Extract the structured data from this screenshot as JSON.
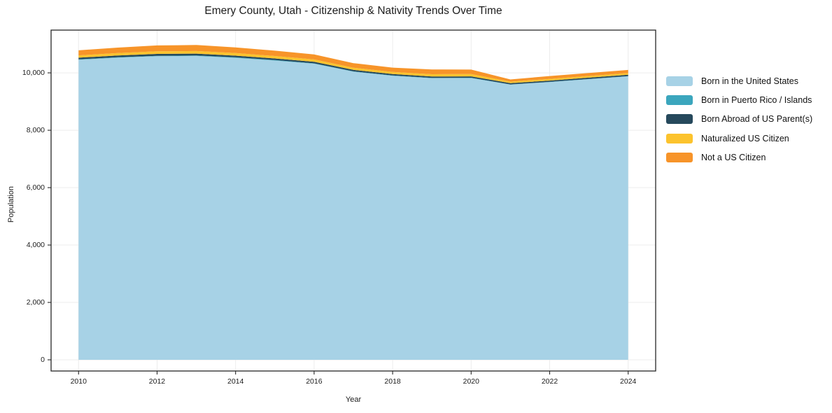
{
  "chart_data": {
    "type": "area",
    "stacked": true,
    "title": "Emery County, Utah - Citizenship & Nativity Trends Over Time",
    "xlabel": "Year",
    "ylabel": "Population",
    "x": [
      2010,
      2011,
      2012,
      2013,
      2014,
      2015,
      2016,
      2017,
      2018,
      2019,
      2020,
      2021,
      2022,
      2023,
      2024
    ],
    "series": [
      {
        "name": "Born in the United States",
        "color": "#a7d2e6",
        "values": [
          10455,
          10530,
          10580,
          10590,
          10525,
          10430,
          10320,
          10040,
          9900,
          9815,
          9820,
          9590,
          9680,
          9780,
          9880
        ]
      },
      {
        "name": "Born in Puerto Rico / Islands",
        "color": "#3ba6bd",
        "values": [
          15,
          15,
          15,
          15,
          15,
          15,
          12,
          12,
          10,
          10,
          10,
          8,
          8,
          8,
          8
        ]
      },
      {
        "name": "Born Abroad of US Parent(s)",
        "color": "#26495c",
        "values": [
          60,
          60,
          65,
          65,
          60,
          58,
          55,
          52,
          50,
          48,
          48,
          42,
          44,
          45,
          45
        ]
      },
      {
        "name": "Naturalized US Citizen",
        "color": "#fcc32d",
        "values": [
          80,
          85,
          90,
          90,
          90,
          85,
          80,
          75,
          72,
          80,
          82,
          55,
          58,
          60,
          58
        ]
      },
      {
        "name": "Not a US Citizen",
        "color": "#f79429",
        "values": [
          175,
          190,
          205,
          210,
          195,
          185,
          175,
          160,
          150,
          165,
          155,
          75,
          100,
          105,
          110
        ]
      }
    ],
    "totals": [
      10785,
      10880,
      10955,
      10970,
      10885,
      10773,
      10642,
      10339,
      10182,
      10118,
      10115,
      9770,
      9890,
      9998,
      10101
    ],
    "x_ticks": {
      "values": [
        2010,
        2012,
        2014,
        2016,
        2018,
        2020,
        2022,
        2024
      ],
      "labels": [
        "2010",
        "2012",
        "2014",
        "2016",
        "2018",
        "2020",
        "2022",
        "2024"
      ]
    },
    "y_ticks": {
      "values": [
        0,
        2000,
        4000,
        6000,
        8000,
        10000
      ],
      "labels": [
        "0",
        "2,000",
        "4,000",
        "6,000",
        "8,000",
        "10,000"
      ]
    },
    "xlim": [
      2009.3,
      2024.7
    ],
    "ylim": [
      -390,
      11490
    ],
    "grid": true,
    "legend_position": "right",
    "colors": {
      "grid": "#ececec",
      "spine": "#262626",
      "tick": "#262626",
      "text": "#1c1c1c",
      "background": "#ffffff"
    }
  }
}
